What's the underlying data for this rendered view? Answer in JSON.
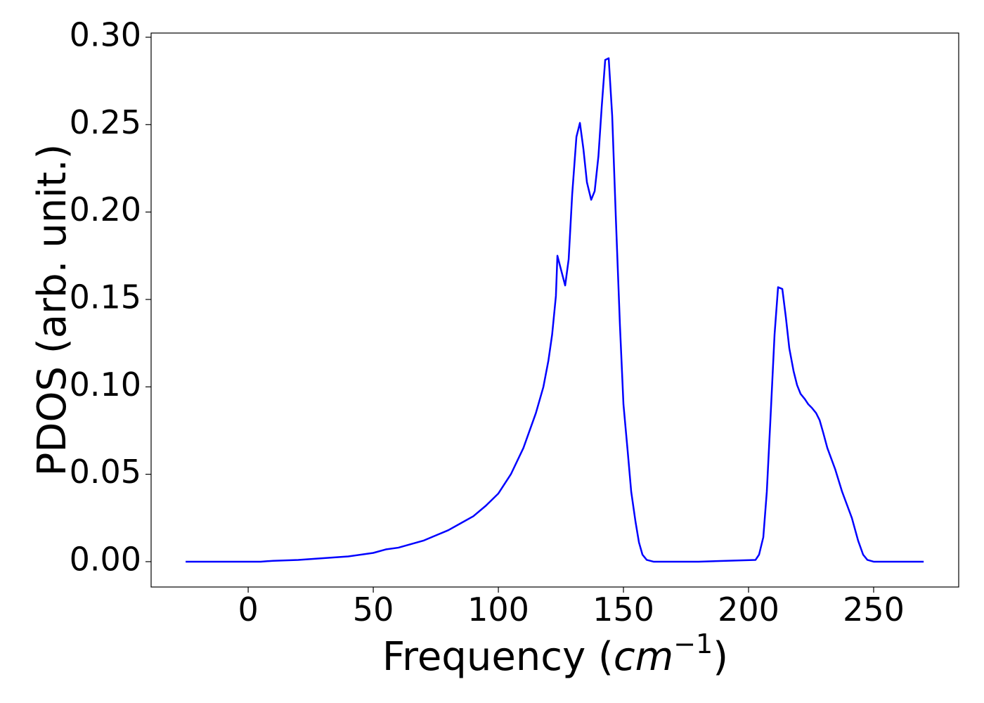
{
  "chart_data": {
    "type": "line",
    "y_label": "PDOS (arb. unit.)",
    "x_label_parts": [
      "Frequency (",
      "cm",
      "−1",
      ")"
    ],
    "xlim": [
      -38.8,
      284
    ],
    "ylim": [
      -0.0145,
      0.3024
    ],
    "xticks": [
      0,
      50,
      100,
      150,
      200,
      250
    ],
    "yticks": [
      {
        "value": 0,
        "label": "0.00"
      },
      0.05,
      {
        "value": 0.1,
        "label": "0.10"
      },
      0.15,
      {
        "value": 0.2,
        "label": "0.20"
      },
      0.25,
      {
        "value": 0.3,
        "label": "0.30"
      }
    ],
    "grid": false,
    "series": [
      {
        "color": "#0000ff",
        "x": [
          -25,
          -15,
          -5,
          5,
          10,
          20,
          30,
          40,
          50,
          55,
          60,
          65,
          70,
          75,
          80,
          85,
          90,
          95,
          100,
          105,
          110,
          115,
          118,
          120,
          121.5,
          123,
          123.6,
          124.5,
          126.7,
          128.1,
          129.5,
          131.2,
          132.6,
          134,
          135.4,
          137.1,
          138.5,
          140,
          141.3,
          142.7,
          144.1,
          145.5,
          147,
          148.6,
          150,
          151.7,
          153.1,
          154.8,
          156.2,
          157.6,
          159.3,
          162,
          180,
          202.8,
          204.2,
          205.9,
          207.3,
          208.7,
          210.4,
          211.8,
          213.5,
          214.9,
          216.3,
          218,
          219.4,
          220.8,
          222.5,
          223.9,
          225.3,
          227,
          228.4,
          229.8,
          231.5,
          234.6,
          237.4,
          241.3,
          243.8,
          245.8,
          247.5,
          250,
          260,
          270
        ],
        "values": [
          0,
          0,
          0,
          0,
          0.0005,
          0.001,
          0.002,
          0.003,
          0.005,
          0.007,
          0.008,
          0.01,
          0.012,
          0.015,
          0.018,
          0.022,
          0.026,
          0.032,
          0.039,
          0.05,
          0.065,
          0.085,
          0.1,
          0.115,
          0.13,
          0.152,
          0.175,
          0.17,
          0.158,
          0.173,
          0.21,
          0.243,
          0.251,
          0.236,
          0.217,
          0.207,
          0.212,
          0.232,
          0.26,
          0.287,
          0.288,
          0.255,
          0.195,
          0.135,
          0.09,
          0.063,
          0.04,
          0.023,
          0.011,
          0.004,
          0.001,
          0,
          0,
          0.001,
          0.004,
          0.014,
          0.04,
          0.08,
          0.13,
          0.157,
          0.156,
          0.14,
          0.122,
          0.109,
          0.101,
          0.096,
          0.093,
          0.09,
          0.088,
          0.085,
          0.081,
          0.074,
          0.065,
          0.053,
          0.04,
          0.025,
          0.012,
          0.004,
          0.001,
          0,
          0,
          0
        ]
      }
    ]
  }
}
